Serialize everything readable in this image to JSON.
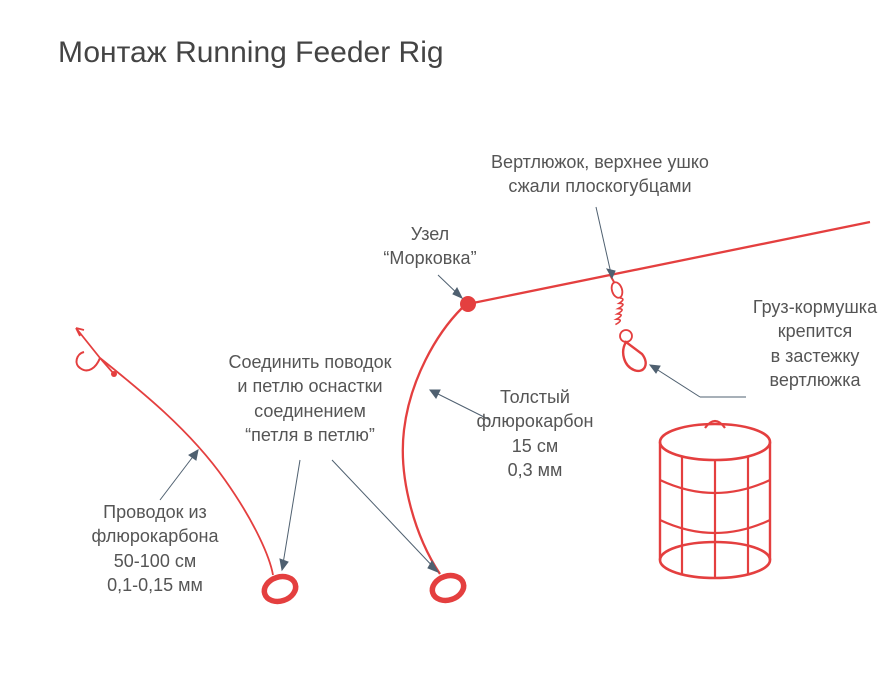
{
  "title": "Монтаж Running Feeder Rig",
  "labels": {
    "swivel_top": "Вертлюжок, верхнее ушко\nсжали плоскогубцами",
    "carrot_knot": "Узел\n“Морковка”",
    "feeder_clip": "Груз-кормушка\nкрепится\nв застежку\nвертлюжка",
    "thick_fluoro": "Толстый\nфлюрокарбон\n15 см\n0,3 мм",
    "loop_connect": "Соединить поводок\nи петлю оснастки\nсоединением\n“петля в петлю”",
    "hook_leader": "Проводок из\nфлюрокарбона\n50-100 см\n0,1-0,15 мм"
  },
  "colors": {
    "stroke": "#e43f3f",
    "text": "#555555",
    "title": "#444444",
    "leader": "#4f6070",
    "background": "#ffffff"
  },
  "style": {
    "title_fontsize": 30,
    "label_fontsize": 18,
    "line_width_main": 2.3,
    "line_width_thin": 1.8,
    "knot_radius": 8,
    "canvas": "888x677"
  },
  "diagram": {
    "type": "fishing-rig-schematic",
    "elements": [
      "hook",
      "leader-line",
      "loop-left",
      "loop-right",
      "carrot-knot",
      "main-line",
      "swivel",
      "snap-link",
      "feeder-cage"
    ]
  }
}
